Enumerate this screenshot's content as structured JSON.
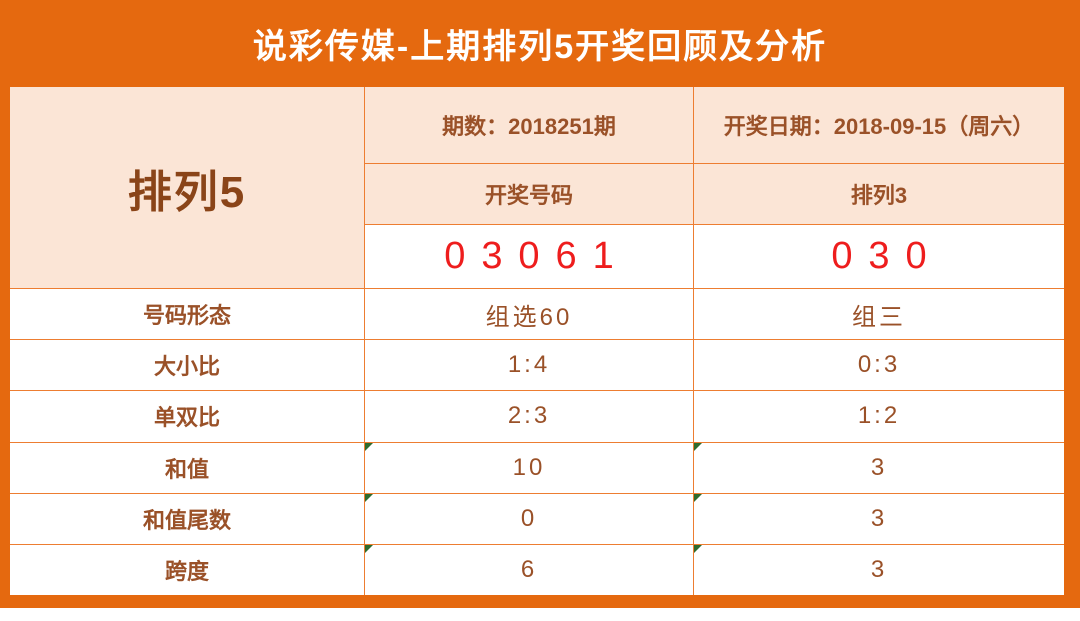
{
  "title": "说彩传媒-上期排列5开奖回顾及分析",
  "colors": {
    "banner_orange": "#e5690f",
    "cell_border_orange": "#ed7d31",
    "peach_fill": "#fbe5d6",
    "text_brown": "#9a5128",
    "number_red": "#ee1d1d",
    "corner_flag_green": "#2e6b2e"
  },
  "table": {
    "game_name": "排列5",
    "issue_label": "期数：2018251期",
    "draw_date_label": "开奖日期：2018-09-15（周六）",
    "draw_number_header": "开奖号码",
    "pl3_header": "排列3",
    "draw_number": "03061",
    "pl3_number": "030",
    "stat_rows": [
      {
        "label": "号码形态",
        "col1": "组选60",
        "col2": "组三",
        "flag": false
      },
      {
        "label": "大小比",
        "col1": "1:4",
        "col2": "0:3",
        "flag": false
      },
      {
        "label": "单双比",
        "col1": "2:3",
        "col2": "1:2",
        "flag": false
      },
      {
        "label": "和值",
        "col1": "10",
        "col2": "3",
        "flag": true
      },
      {
        "label": "和值尾数",
        "col1": "0",
        "col2": "3",
        "flag": true
      },
      {
        "label": "跨度",
        "col1": "6",
        "col2": "3",
        "flag": true
      }
    ]
  }
}
